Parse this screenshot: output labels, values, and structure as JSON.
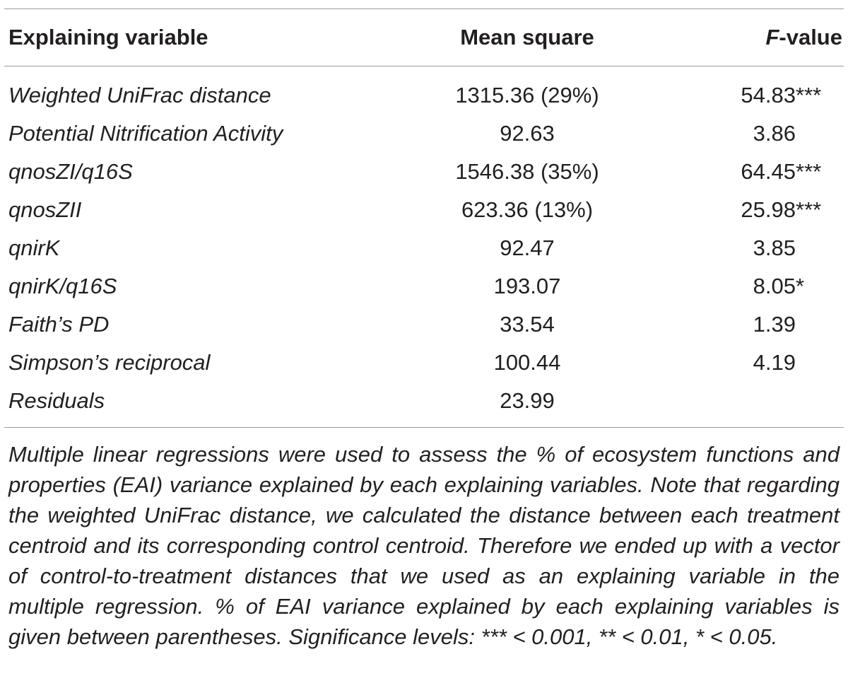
{
  "table": {
    "headers": {
      "variable": "Explaining variable",
      "mean_square": "Mean square",
      "f_value_italic": "F",
      "f_value_rest": "-value"
    },
    "rows": [
      {
        "variable": "Weighted UniFrac distance",
        "mean_square": "1315.36 (29%)",
        "f_value": "54.83***"
      },
      {
        "variable": "Potential Nitrification Activity",
        "mean_square": "92.63",
        "f_value": "3.86"
      },
      {
        "variable": "qnosZI/q16S",
        "mean_square": "1546.38 (35%)",
        "f_value": "64.45***"
      },
      {
        "variable": "qnosZII",
        "mean_square": "623.36 (13%)",
        "f_value": "25.98***"
      },
      {
        "variable": "qnirK",
        "mean_square": "92.47",
        "f_value": "3.85"
      },
      {
        "variable": "qnirK/q16S",
        "mean_square": "193.07",
        "f_value": "8.05*"
      },
      {
        "variable": "Faith’s PD",
        "mean_square": "33.54",
        "f_value": "1.39"
      },
      {
        "variable": "Simpson’s reciprocal",
        "mean_square": "100.44",
        "f_value": "4.19"
      },
      {
        "variable": "Residuals",
        "mean_square": "23.99",
        "f_value": ""
      }
    ]
  },
  "footnote": "Multiple linear regressions were used to assess the % of ecosystem functions and properties (EAI) variance explained by each explaining variables. Note that regarding the weighted UniFrac distance, we calculated the distance between each treatment centroid and its corresponding control centroid. Therefore we ended up with a vector of control-to-treatment distances that we used as an explaining variable in the multiple regression. % of EAI variance explained by each explaining variables is given between parentheses. Significance levels: *** < 0.001, ** < 0.01, * < 0.05."
}
